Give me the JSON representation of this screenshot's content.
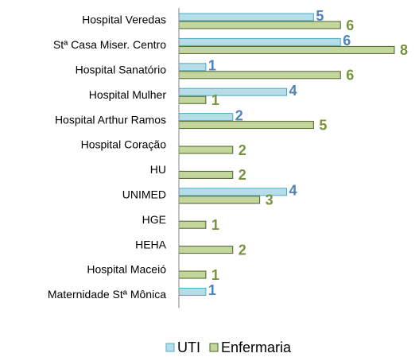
{
  "chart_data": {
    "type": "hbar",
    "categories": [
      "Hospital Veredas",
      "Stª Casa Miser. Centro",
      "Hospital Sanatório",
      "Hospital Mulher",
      "Hospital Arthur Ramos",
      "Hospital Coração",
      "HU",
      "UNIMED",
      "HGE",
      "HEHA",
      "Hospital Maceió",
      "Maternidade Stª Mônica"
    ],
    "series": [
      {
        "name": "UTI",
        "color": "#b7dee8",
        "edge": "#4bacc6",
        "label_color": "#4f81bd",
        "values": [
          5,
          6,
          1,
          4,
          2,
          null,
          null,
          4,
          null,
          null,
          null,
          1
        ]
      },
      {
        "name": "Enfermaria",
        "color": "#c3d69b",
        "edge": "#4f6228",
        "label_color": "#77933c",
        "values": [
          6,
          8,
          6,
          1,
          5,
          2,
          2,
          3,
          1,
          2,
          1,
          null
        ]
      }
    ],
    "xlim": [
      0,
      8
    ],
    "legend": "bottom"
  }
}
